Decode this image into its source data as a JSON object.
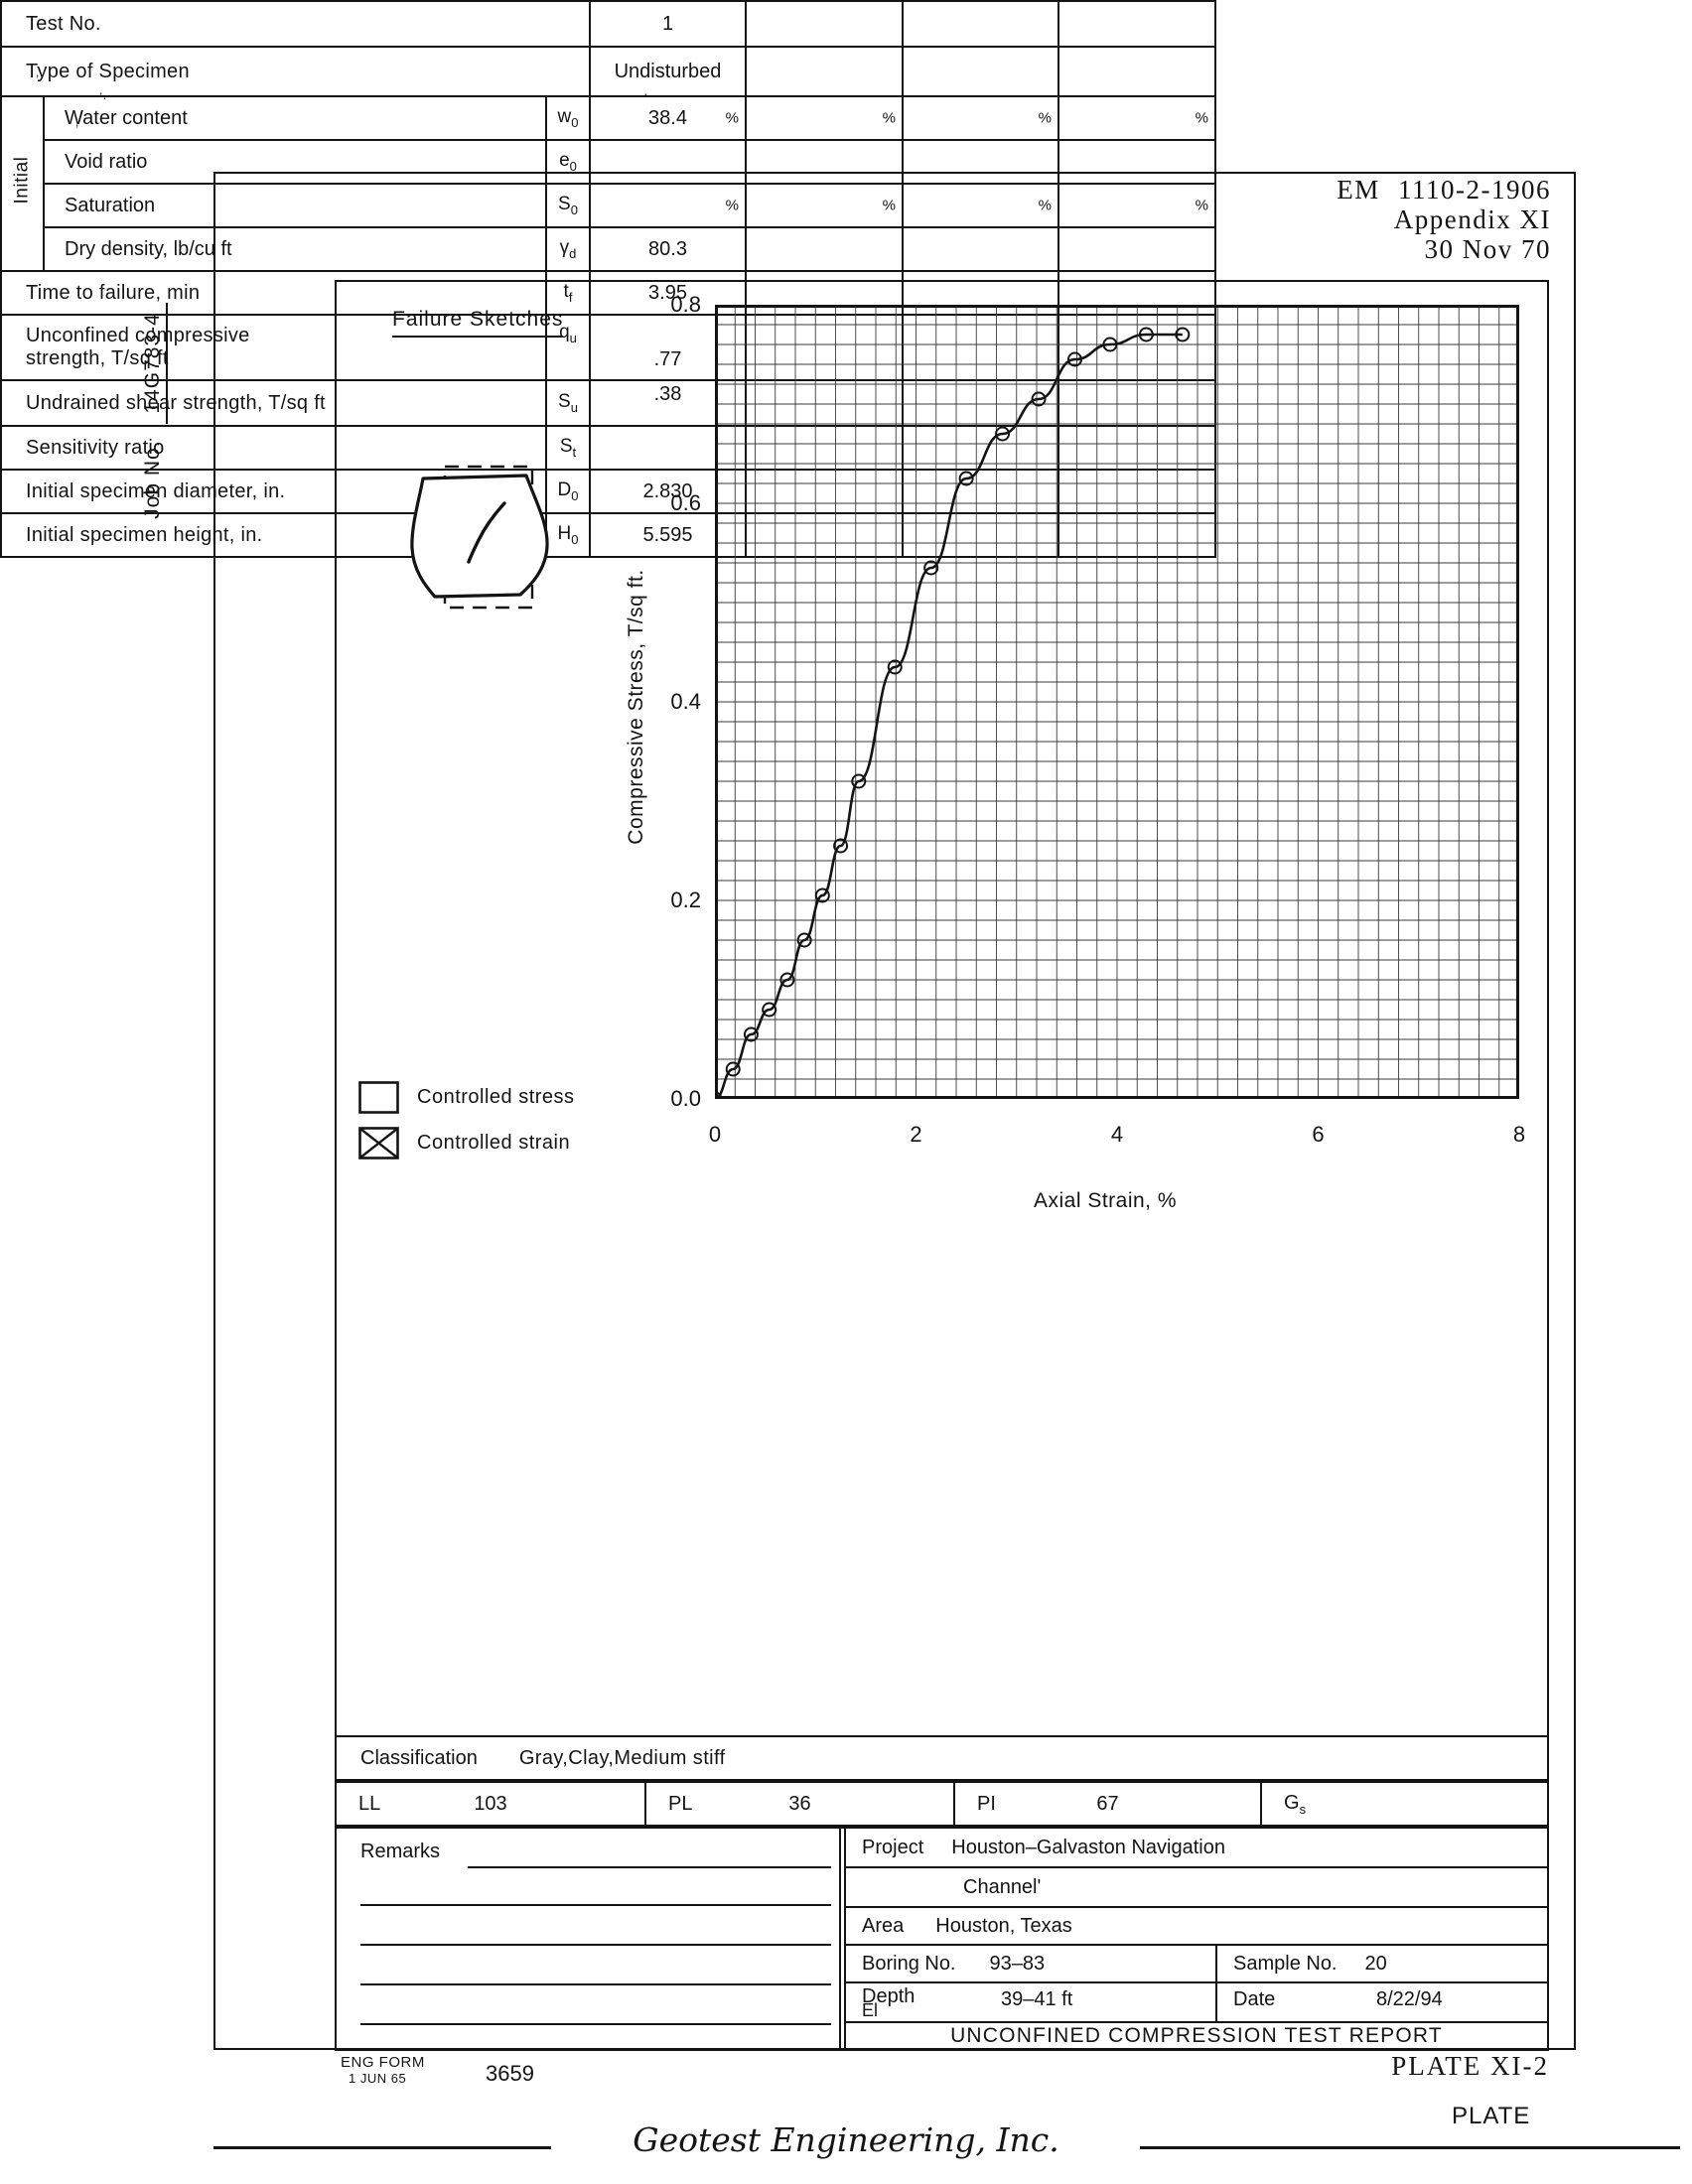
{
  "header": {
    "doc_ref": "EM 1110-2-1906",
    "appendix": "Appendix XI",
    "date": "30 Nov 70"
  },
  "margin": {
    "job_label": "Job No.",
    "job_value": "14G783-4"
  },
  "failure_sketches": {
    "title": "Failure Sketches"
  },
  "legend": {
    "items": [
      {
        "label": "Controlled stress",
        "checked": false
      },
      {
        "label": "Controlled strain",
        "checked": true
      }
    ]
  },
  "chart_data": {
    "type": "line",
    "title": "",
    "xlabel": "Axial Strain, %",
    "ylabel": "Compressive Stress, T/sq ft.",
    "xlim": [
      0,
      8
    ],
    "ylim": [
      0,
      0.8
    ],
    "xticks": [
      "0",
      "2",
      "4",
      "6",
      "8"
    ],
    "yticks": [
      "0.0",
      "0.2",
      "0.4",
      "0.6",
      "0.8"
    ],
    "grid": "on",
    "minor_step": {
      "x": 0.2,
      "y": 0.02
    },
    "marker": "open-circle",
    "series": [
      {
        "name": "stress-strain curve",
        "x": [
          0,
          0.18,
          0.36,
          0.54,
          0.72,
          0.89,
          1.07,
          1.25,
          1.43,
          1.79,
          2.15,
          2.5,
          2.86,
          3.22,
          3.58,
          3.93,
          4.29,
          4.65
        ],
        "y": [
          0,
          0.03,
          0.065,
          0.09,
          0.12,
          0.16,
          0.205,
          0.255,
          0.32,
          0.435,
          0.535,
          0.625,
          0.67,
          0.705,
          0.745,
          0.76,
          0.77,
          0.77
        ]
      }
    ]
  },
  "table": {
    "percent_sign": "%",
    "initial_group_label": "Initial",
    "rows": {
      "test_no": {
        "label": "Test No.",
        "v1": "1"
      },
      "type": {
        "label": "Type of Specimen",
        "v1": "Undisturbed"
      },
      "water": {
        "label": "Water content",
        "sym": "w",
        "sub": "0",
        "v1": "38.4"
      },
      "void": {
        "label": "Void ratio",
        "sym": "e",
        "sub": "0",
        "v1": ""
      },
      "saturation": {
        "label": "Saturation",
        "sym": "S",
        "sub": "0",
        "v1": ""
      },
      "dry_density": {
        "label": "Dry density, lb/cu ft",
        "sym": "γ",
        "sub": "d",
        "v1": "80.3"
      },
      "time": {
        "label": "Time to failure, min",
        "sym": "t",
        "sub": "f",
        "v1": "3.95"
      },
      "qu": {
        "label1": "Unconfined compressive",
        "label2": "strength, T/sq ft",
        "sym": "q",
        "sub": "u",
        "v1": ".77"
      },
      "su": {
        "label": "Undrained shear strength, T/sq ft",
        "sym": "S",
        "sub": "u",
        "v1": ".38"
      },
      "st": {
        "label": "Sensitivity ratio",
        "sym": "S",
        "sub": "t",
        "v1": ""
      },
      "d0": {
        "label": "Initial specimen diameter, in.",
        "sym": "D",
        "sub": "0",
        "v1": "2.830"
      },
      "h0": {
        "label": "Initial specimen height, in.",
        "sym": "H",
        "sub": "0",
        "v1": "5.595"
      }
    }
  },
  "classification": {
    "label": "Classification",
    "value": "Gray,Clay,Medium stiff"
  },
  "atterberg": {
    "ll_label": "LL",
    "ll_value": "103",
    "pl_label": "PL",
    "pl_value": "36",
    "pi_label": "PI",
    "pi_value": "67",
    "gs_label": "G",
    "gs_sub": "s",
    "gs_value": ""
  },
  "remarks": {
    "label": "Remarks"
  },
  "project": {
    "project_label": "Project",
    "project_value_line1": "Houston–Galvaston Navigation",
    "project_value_line2": "Channel'",
    "area_label": "Area",
    "area_value": "Houston, Texas",
    "boring_label": "Boring No.",
    "boring_value": "93–83",
    "sample_label": "Sample No.",
    "sample_value": "20",
    "depth_label": "Depth",
    "el_label": "El",
    "depth_value": "39–41 ft",
    "date_label": "Date",
    "date_value": "8/22/94",
    "report_title": "UNCONFINED COMPRESSION TEST REPORT"
  },
  "footer": {
    "form_label": "ENG FORM",
    "form_date": "1 JUN 65",
    "form_number": "3659",
    "plate_ref": "PLATE XI-2",
    "company": "Geotest Engineering, Inc.",
    "plate_label": "PLATE"
  }
}
